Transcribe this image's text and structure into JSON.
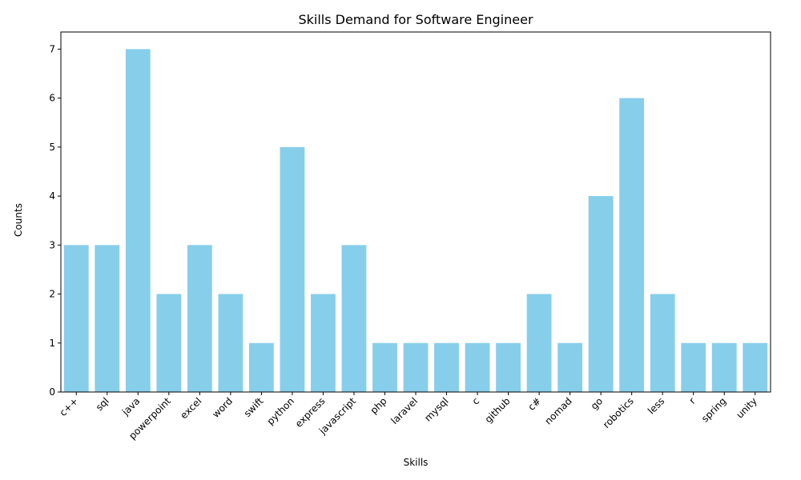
{
  "chart_data": {
    "type": "bar",
    "title": "Skills Demand for Software Engineer",
    "xlabel": "Skills",
    "ylabel": "Counts",
    "categories": [
      "c++",
      "sql",
      "java",
      "powerpoint",
      "excel",
      "word",
      "swift",
      "python",
      "express",
      "javascript",
      "php",
      "laravel",
      "mysql",
      "c",
      "github",
      "c#",
      "nomad",
      "go",
      "robotics",
      "less",
      "r",
      "spring",
      "unity"
    ],
    "values": [
      3,
      3,
      7,
      2,
      3,
      2,
      1,
      5,
      2,
      3,
      1,
      1,
      1,
      1,
      1,
      2,
      1,
      4,
      6,
      2,
      1,
      1,
      1
    ],
    "ylim": [
      0,
      7.35
    ],
    "yticks": [
      0,
      1,
      2,
      3,
      4,
      5,
      6,
      7
    ],
    "bar_color": "#87ceeb",
    "grid": false,
    "legend": "none"
  }
}
